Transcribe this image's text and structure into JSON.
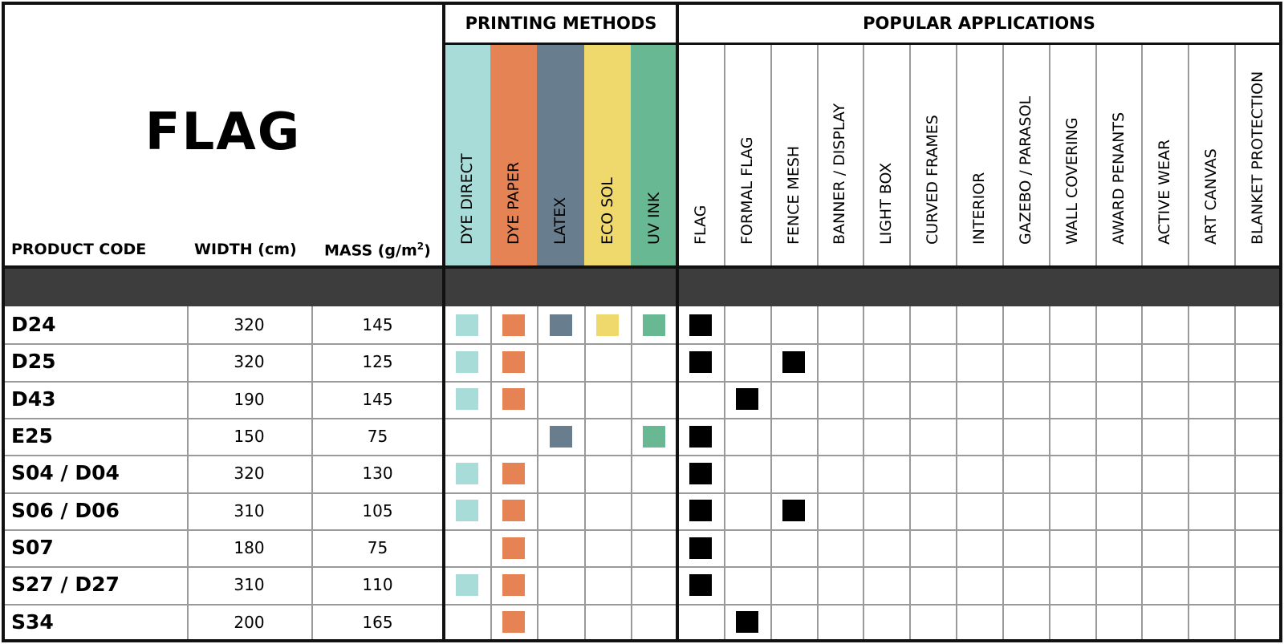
{
  "title": "FLAG",
  "headers": {
    "product_code": "PRODUCT CODE",
    "width": "WIDTH (cm)",
    "mass_prefix": "MASS (g/m",
    "mass_sup": "2",
    "mass_suffix": ")",
    "printing_methods": "PRINTING METHODS",
    "popular_applications": "POPULAR APPLICATIONS"
  },
  "printing_methods": [
    {
      "id": "dye-direct",
      "label": "DYE DIRECT",
      "color": "#a8dcd9"
    },
    {
      "id": "dye-paper",
      "label": "DYE PAPER",
      "color": "#e58354"
    },
    {
      "id": "latex",
      "label": "LATEX",
      "color": "#687d8d"
    },
    {
      "id": "eco-sol",
      "label": "ECO SOL",
      "color": "#efd96d"
    },
    {
      "id": "uv-ink",
      "label": "UV INK",
      "color": "#68b893"
    }
  ],
  "applications": [
    "FLAG",
    "FORMAL FLAG",
    "FENCE MESH",
    "BANNER / DISPLAY",
    "LIGHT BOX",
    "CURVED FRAMES",
    "INTERIOR",
    "GAZEBO / PARASOL",
    "WALL COVERING",
    "AWARD PENANTS",
    "ACTIVE WEAR",
    "ART CANVAS",
    "BLANKET PROTECTION"
  ],
  "colors": {
    "separator_band": "#3d3d3d",
    "grid_line": "#9a9a9a",
    "border": "#111111",
    "application_mark": "#000000"
  },
  "rows": [
    {
      "code": "D24",
      "width": "320",
      "mass": "145",
      "methods": [
        1,
        1,
        1,
        1,
        1
      ],
      "apps": [
        1,
        0,
        0,
        0,
        0,
        0,
        0,
        0,
        0,
        0,
        0,
        0,
        0
      ]
    },
    {
      "code": "D25",
      "width": "320",
      "mass": "125",
      "methods": [
        1,
        1,
        0,
        0,
        0
      ],
      "apps": [
        1,
        0,
        1,
        0,
        0,
        0,
        0,
        0,
        0,
        0,
        0,
        0,
        0
      ]
    },
    {
      "code": "D43",
      "width": "190",
      "mass": "145",
      "methods": [
        1,
        1,
        0,
        0,
        0
      ],
      "apps": [
        0,
        1,
        0,
        0,
        0,
        0,
        0,
        0,
        0,
        0,
        0,
        0,
        0
      ]
    },
    {
      "code": "E25",
      "width": "150",
      "mass": "75",
      "methods": [
        0,
        0,
        1,
        0,
        1
      ],
      "apps": [
        1,
        0,
        0,
        0,
        0,
        0,
        0,
        0,
        0,
        0,
        0,
        0,
        0
      ]
    },
    {
      "code": "S04 / D04",
      "width": "320",
      "mass": "130",
      "methods": [
        1,
        1,
        0,
        0,
        0
      ],
      "apps": [
        1,
        0,
        0,
        0,
        0,
        0,
        0,
        0,
        0,
        0,
        0,
        0,
        0
      ]
    },
    {
      "code": "S06 / D06",
      "width": "310",
      "mass": "105",
      "methods": [
        1,
        1,
        0,
        0,
        0
      ],
      "apps": [
        1,
        0,
        1,
        0,
        0,
        0,
        0,
        0,
        0,
        0,
        0,
        0,
        0
      ]
    },
    {
      "code": "S07",
      "width": "180",
      "mass": "75",
      "methods": [
        0,
        1,
        0,
        0,
        0
      ],
      "apps": [
        1,
        0,
        0,
        0,
        0,
        0,
        0,
        0,
        0,
        0,
        0,
        0,
        0
      ]
    },
    {
      "code": "S27 / D27",
      "width": "310",
      "mass": "110",
      "methods": [
        1,
        1,
        0,
        0,
        0
      ],
      "apps": [
        1,
        0,
        0,
        0,
        0,
        0,
        0,
        0,
        0,
        0,
        0,
        0,
        0
      ]
    },
    {
      "code": "S34",
      "width": "200",
      "mass": "165",
      "methods": [
        0,
        1,
        0,
        0,
        0
      ],
      "apps": [
        0,
        1,
        0,
        0,
        0,
        0,
        0,
        0,
        0,
        0,
        0,
        0,
        0
      ]
    }
  ]
}
